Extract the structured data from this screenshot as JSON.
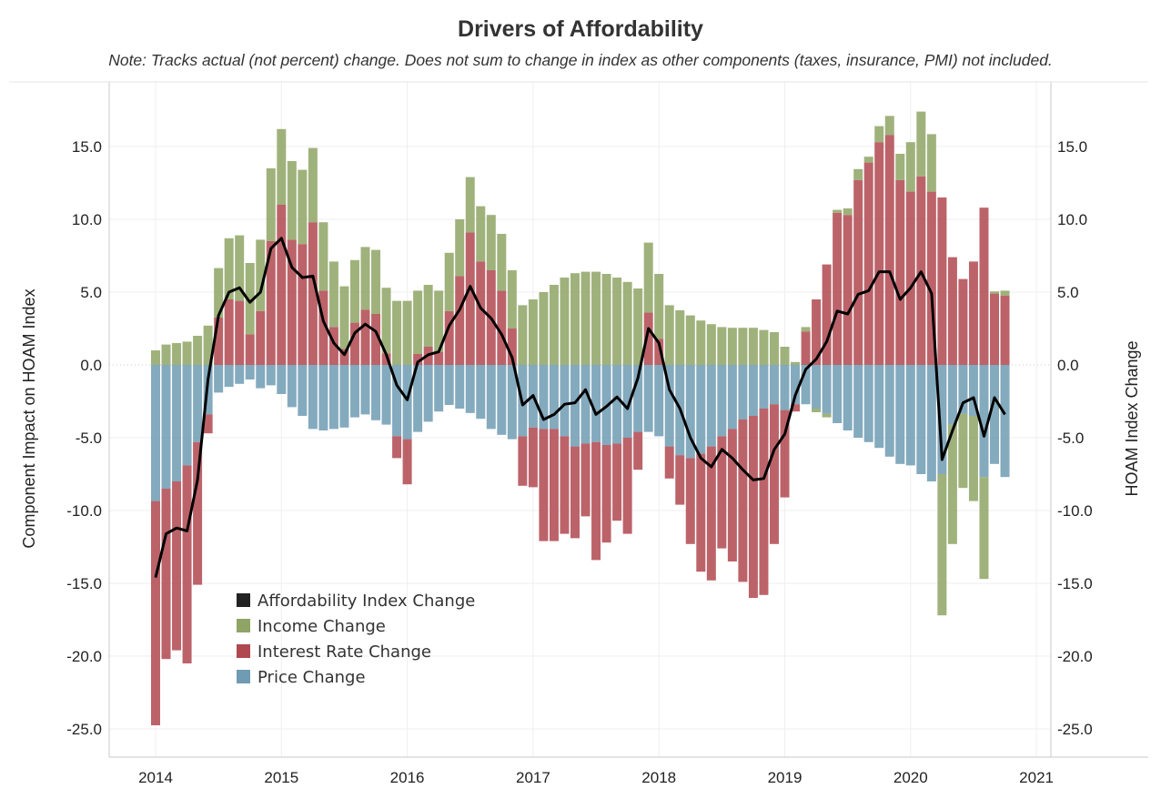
{
  "chart_data": {
    "type": "bar",
    "subtype": "stacked bar with line overlay (dual y-axis)",
    "title": "Drivers of Affordability",
    "subtitle": "Note: Tracks actual (not percent) change. Does not sum to change in index as other components (taxes, insurance, PMI) not included.",
    "ylabel": "Component Impact on HOAM Index",
    "ylabel_right": "HOAM Index Change",
    "xlabel": "",
    "ylim": [
      -26.9,
      19.4
    ],
    "y_ticks": [
      "15.0",
      "10.0",
      "5.0",
      "0.0",
      "-5.0",
      "-10.0",
      "-15.0",
      "-20.0",
      "-25.0"
    ],
    "y_tick_values": [
      15,
      10,
      5,
      0,
      -5,
      -10,
      -15,
      -20,
      -25
    ],
    "x_ticks": [
      "2014",
      "2015",
      "2016",
      "2017",
      "2018",
      "2019",
      "2020",
      "2021"
    ],
    "x_start": "2014-01",
    "x_frequency": "monthly",
    "x_end": "2020-10",
    "grid": true,
    "legend_position": "bottom-left inside",
    "series": [
      {
        "name": "Affordability Index Change",
        "kind": "line",
        "color": "#000000",
        "values": [
          -14.6,
          -11.6,
          -11.2,
          -11.4,
          -7.9,
          -1.0,
          3.4,
          5.0,
          5.3,
          4.3,
          5.0,
          8.0,
          8.7,
          6.7,
          6.0,
          6.1,
          3.0,
          1.5,
          0.7,
          2.2,
          2.8,
          2.3,
          0.7,
          -1.4,
          -2.4,
          0.2,
          0.7,
          0.9,
          2.7,
          3.8,
          5.4,
          3.9,
          3.2,
          2.1,
          0.5,
          -2.75,
          -2.1,
          -3.75,
          -3.4,
          -2.7,
          -2.6,
          -1.7,
          -3.4,
          -2.85,
          -2.2,
          -3.0,
          -0.9,
          2.5,
          1.5,
          -1.7,
          -3.0,
          -5.0,
          -6.4,
          -7.0,
          -5.8,
          -6.4,
          -7.2,
          -7.9,
          -7.8,
          -5.8,
          -4.75,
          -2.1,
          -0.3,
          0.4,
          1.6,
          3.7,
          3.5,
          4.85,
          5.1,
          6.4,
          6.4,
          4.5,
          5.3,
          6.4,
          4.9,
          -6.5,
          -4.5,
          -2.6,
          -2.25,
          -4.9,
          -2.25,
          -3.4
        ]
      },
      {
        "name": "Income Change",
        "kind": "bar",
        "color": "#8fa465",
        "values": [
          1.0,
          1.4,
          1.5,
          1.6,
          2.0,
          2.7,
          3.4,
          4.2,
          4.5,
          4.9,
          4.9,
          5.0,
          5.2,
          5.4,
          5.1,
          5.1,
          4.7,
          4.5,
          4.3,
          4.3,
          4.3,
          4.4,
          4.5,
          4.4,
          4.4,
          4.35,
          4.25,
          4.2,
          4.0,
          3.9,
          3.8,
          3.8,
          3.8,
          3.9,
          4.0,
          4.1,
          4.5,
          5.0,
          5.5,
          6.0,
          6.3,
          6.4,
          6.4,
          6.25,
          6.0,
          5.7,
          5.25,
          4.8,
          4.45,
          4.1,
          3.75,
          3.4,
          3.05,
          2.8,
          2.6,
          2.55,
          2.55,
          2.55,
          2.4,
          2.25,
          1.25,
          0.2,
          0.3,
          -0.25,
          -0.25,
          0.2,
          0.45,
          0.75,
          0.4,
          1.1,
          1.3,
          1.8,
          3.4,
          4.45,
          3.95,
          -9.7,
          -8.2,
          -5.1,
          -5.85,
          -7.0,
          0.15,
          0.35
        ]
      },
      {
        "name": "Interest Rate Change",
        "kind": "bar",
        "color": "#b04850",
        "values": [
          -15.4,
          -11.7,
          -11.6,
          -13.6,
          -9.8,
          -1.3,
          3.25,
          4.5,
          4.4,
          2.1,
          3.7,
          8.5,
          11.0,
          8.6,
          8.3,
          9.8,
          5.1,
          2.6,
          1.1,
          2.9,
          3.8,
          3.5,
          0.8,
          -1.5,
          -3.1,
          0.75,
          1.25,
          0.9,
          3.7,
          6.1,
          9.1,
          7.1,
          6.5,
          5.1,
          2.5,
          -3.4,
          -4.1,
          -7.7,
          -7.7,
          -6.7,
          -6.3,
          -5.0,
          -8.1,
          -6.7,
          -5.3,
          -6.6,
          -2.6,
          3.6,
          1.8,
          -2.2,
          -3.4,
          -5.9,
          -8.1,
          -9.2,
          -7.7,
          -9.1,
          -11.15,
          -12.5,
          -12.8,
          -9.6,
          -6.0,
          -0.5,
          2.3,
          4.5,
          6.9,
          10.45,
          10.3,
          12.7,
          13.9,
          15.3,
          15.8,
          12.7,
          11.9,
          12.95,
          11.9,
          11.5,
          7.4,
          5.9,
          7.1,
          10.8,
          4.9,
          4.75
        ]
      },
      {
        "name": "Price Change",
        "kind": "bar",
        "color": "#6f9bb3",
        "values": [
          -9.35,
          -8.5,
          -8.0,
          -6.9,
          -5.3,
          -3.4,
          -1.9,
          -1.5,
          -1.3,
          -1.0,
          -1.6,
          -1.4,
          -2.0,
          -2.9,
          -3.5,
          -4.4,
          -4.5,
          -4.4,
          -4.3,
          -3.6,
          -3.4,
          -3.8,
          -4.1,
          -4.9,
          -5.1,
          -4.6,
          -3.9,
          -3.2,
          -2.75,
          -3.0,
          -3.3,
          -3.7,
          -4.4,
          -4.8,
          -5.1,
          -4.9,
          -4.3,
          -4.4,
          -4.4,
          -4.9,
          -5.6,
          -5.4,
          -5.3,
          -5.5,
          -5.4,
          -5.0,
          -4.6,
          -4.6,
          -4.9,
          -5.6,
          -6.2,
          -6.4,
          -6.1,
          -5.6,
          -4.9,
          -4.4,
          -3.75,
          -3.5,
          -3.0,
          -2.7,
          -3.1,
          -2.7,
          -2.7,
          -3.0,
          -3.35,
          -4.0,
          -4.5,
          -5.0,
          -5.3,
          -5.7,
          -6.3,
          -6.8,
          -6.9,
          -7.5,
          -8.0,
          -7.5,
          -4.1,
          -3.35,
          -3.5,
          -7.7,
          -6.8,
          -7.7
        ]
      }
    ]
  }
}
